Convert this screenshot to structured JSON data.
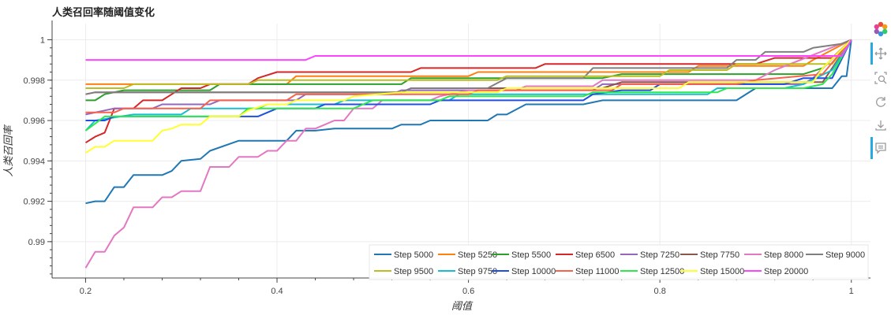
{
  "chart_data": {
    "type": "line",
    "title": "人类召回率随阈值变化",
    "xlabel": "阈值",
    "ylabel": "人类召回率",
    "xlim": [
      0.165,
      1.02
    ],
    "ylim": [
      0.9882,
      1.0008
    ],
    "xticks": [
      0.2,
      0.4,
      0.6,
      0.8,
      1
    ],
    "xtick_labels": [
      "0.2",
      "0.4",
      "0.6",
      "0.8",
      "1"
    ],
    "yticks": [
      0.99,
      0.992,
      0.994,
      0.996,
      0.998,
      1
    ],
    "ytick_labels": [
      "0.99",
      "0.992",
      "0.994",
      "0.996",
      "0.998",
      "1"
    ],
    "grid": true,
    "legend_position": "bottom-right",
    "series": [
      {
        "name": "Step 5000",
        "color": "#1f77b4",
        "points": [
          [
            0.2,
            0.9919
          ],
          [
            0.21,
            0.992
          ],
          [
            0.22,
            0.992
          ],
          [
            0.23,
            0.9927
          ],
          [
            0.24,
            0.9927
          ],
          [
            0.25,
            0.9933
          ],
          [
            0.28,
            0.9933
          ],
          [
            0.29,
            0.9935
          ],
          [
            0.3,
            0.994
          ],
          [
            0.32,
            0.9941
          ],
          [
            0.33,
            0.9945
          ],
          [
            0.36,
            0.995
          ],
          [
            0.41,
            0.995
          ],
          [
            0.42,
            0.9955
          ],
          [
            0.44,
            0.9955
          ],
          [
            0.46,
            0.9956
          ],
          [
            0.52,
            0.9956
          ],
          [
            0.53,
            0.9958
          ],
          [
            0.55,
            0.9958
          ],
          [
            0.56,
            0.996
          ],
          [
            0.62,
            0.996
          ],
          [
            0.63,
            0.9963
          ],
          [
            0.64,
            0.9963
          ],
          [
            0.66,
            0.9968
          ],
          [
            0.72,
            0.9968
          ],
          [
            0.74,
            0.997
          ],
          [
            0.88,
            0.997
          ],
          [
            0.9,
            0.9976
          ],
          [
            0.98,
            0.9976
          ],
          [
            0.99,
            0.9982
          ],
          [
            0.995,
            0.9982
          ],
          [
            1.0,
            1.0
          ]
        ]
      },
      {
        "name": "Step 5250",
        "color": "#ff7f0e",
        "points": [
          [
            0.2,
            0.9978
          ],
          [
            0.41,
            0.9978
          ],
          [
            0.42,
            0.9982
          ],
          [
            0.6,
            0.9982
          ],
          [
            0.61,
            0.9984
          ],
          [
            0.83,
            0.9984
          ],
          [
            0.84,
            0.9987
          ],
          [
            0.95,
            0.9987
          ],
          [
            0.96,
            0.999
          ],
          [
            1.0,
            1.0
          ]
        ]
      },
      {
        "name": "Step 5500",
        "color": "#2ca02c",
        "points": [
          [
            0.2,
            0.997
          ],
          [
            0.21,
            0.997
          ],
          [
            0.22,
            0.9973
          ],
          [
            0.24,
            0.9975
          ],
          [
            0.33,
            0.9975
          ],
          [
            0.34,
            0.9978
          ],
          [
            0.53,
            0.9978
          ],
          [
            0.54,
            0.9981
          ],
          [
            0.74,
            0.9981
          ],
          [
            0.76,
            0.9983
          ],
          [
            0.95,
            0.9983
          ],
          [
            0.97,
            0.9986
          ],
          [
            1.0,
            1.0
          ]
        ]
      },
      {
        "name": "Step 6500",
        "color": "#d62728",
        "points": [
          [
            0.2,
            0.9949
          ],
          [
            0.21,
            0.9952
          ],
          [
            0.22,
            0.9954
          ],
          [
            0.23,
            0.9966
          ],
          [
            0.25,
            0.9966
          ],
          [
            0.26,
            0.997
          ],
          [
            0.28,
            0.997
          ],
          [
            0.29,
            0.9973
          ],
          [
            0.3,
            0.9976
          ],
          [
            0.32,
            0.9976
          ],
          [
            0.33,
            0.9978
          ],
          [
            0.37,
            0.9978
          ],
          [
            0.38,
            0.9981
          ],
          [
            0.4,
            0.9984
          ],
          [
            0.54,
            0.9984
          ],
          [
            0.55,
            0.9986
          ],
          [
            0.67,
            0.9986
          ],
          [
            0.68,
            0.9988
          ],
          [
            0.9,
            0.9988
          ],
          [
            0.92,
            0.9991
          ],
          [
            0.98,
            0.9991
          ],
          [
            1.0,
            1.0
          ]
        ]
      },
      {
        "name": "Step 7250",
        "color": "#9467bd",
        "points": [
          [
            0.2,
            0.9963
          ],
          [
            0.23,
            0.9966
          ],
          [
            0.27,
            0.9966
          ],
          [
            0.28,
            0.9968
          ],
          [
            0.33,
            0.9968
          ],
          [
            0.34,
            0.997
          ],
          [
            0.42,
            0.997
          ],
          [
            0.43,
            0.9973
          ],
          [
            0.52,
            0.9973
          ],
          [
            0.53,
            0.9975
          ],
          [
            0.73,
            0.9975
          ],
          [
            0.74,
            0.9978
          ],
          [
            0.95,
            0.9978
          ],
          [
            0.96,
            0.9981
          ],
          [
            1.0,
            1.0
          ]
        ]
      },
      {
        "name": "Step 7750",
        "color": "#8c564b",
        "points": [
          [
            0.2,
            0.9973
          ],
          [
            0.21,
            0.9974
          ],
          [
            0.53,
            0.9974
          ],
          [
            0.54,
            0.9976
          ],
          [
            0.74,
            0.9976
          ],
          [
            0.76,
            0.9979
          ],
          [
            0.97,
            0.9979
          ],
          [
            1.0,
            1.0
          ]
        ]
      },
      {
        "name": "Step 8000",
        "color": "#e377c2",
        "points": [
          [
            0.2,
            0.9887
          ],
          [
            0.21,
            0.9895
          ],
          [
            0.22,
            0.9895
          ],
          [
            0.23,
            0.9903
          ],
          [
            0.24,
            0.9907
          ],
          [
            0.25,
            0.9917
          ],
          [
            0.27,
            0.9917
          ],
          [
            0.28,
            0.9922
          ],
          [
            0.29,
            0.9922
          ],
          [
            0.3,
            0.9925
          ],
          [
            0.32,
            0.9925
          ],
          [
            0.33,
            0.9937
          ],
          [
            0.35,
            0.9937
          ],
          [
            0.36,
            0.9942
          ],
          [
            0.38,
            0.9942
          ],
          [
            0.39,
            0.9945
          ],
          [
            0.4,
            0.9945
          ],
          [
            0.41,
            0.995
          ],
          [
            0.42,
            0.995
          ],
          [
            0.43,
            0.9956
          ],
          [
            0.44,
            0.9956
          ],
          [
            0.45,
            0.9958
          ],
          [
            0.46,
            0.996
          ],
          [
            0.47,
            0.996
          ],
          [
            0.48,
            0.9966
          ],
          [
            0.5,
            0.9966
          ],
          [
            0.51,
            0.997
          ],
          [
            0.56,
            0.997
          ],
          [
            0.57,
            0.9972
          ],
          [
            0.6,
            0.9975
          ],
          [
            0.65,
            0.9975
          ],
          [
            0.66,
            0.9977
          ],
          [
            0.73,
            0.9977
          ],
          [
            0.74,
            0.998
          ],
          [
            0.9,
            0.998
          ],
          [
            0.92,
            0.9985
          ],
          [
            1.0,
            1.0
          ]
        ]
      },
      {
        "name": "Step 9000",
        "color": "#7f7f7f",
        "points": [
          [
            0.2,
            0.9973
          ],
          [
            0.21,
            0.9974
          ],
          [
            0.53,
            0.9974
          ],
          [
            0.54,
            0.9976
          ],
          [
            0.62,
            0.9976
          ],
          [
            0.64,
            0.9981
          ],
          [
            0.72,
            0.9981
          ],
          [
            0.73,
            0.9986
          ],
          [
            0.87,
            0.9986
          ],
          [
            0.88,
            0.999
          ],
          [
            0.9,
            0.999
          ],
          [
            0.91,
            0.9994
          ],
          [
            0.95,
            0.9994
          ],
          [
            0.96,
            0.9996
          ],
          [
            0.99,
            0.9998
          ],
          [
            1.0,
            1.0
          ]
        ]
      },
      {
        "name": "Step 9500",
        "color": "#bcbd22",
        "points": [
          [
            0.2,
            0.9976
          ],
          [
            0.24,
            0.9976
          ],
          [
            0.25,
            0.9978
          ],
          [
            0.37,
            0.9978
          ],
          [
            0.38,
            0.998
          ],
          [
            0.63,
            0.998
          ],
          [
            0.64,
            0.9982
          ],
          [
            0.8,
            0.9982
          ],
          [
            0.81,
            0.9985
          ],
          [
            0.87,
            0.9985
          ],
          [
            0.88,
            0.9988
          ],
          [
            0.98,
            0.9988
          ],
          [
            1.0,
            1.0
          ]
        ]
      },
      {
        "name": "Step 9750",
        "color": "#17becf",
        "points": [
          [
            0.2,
            0.9955
          ],
          [
            0.21,
            0.996
          ],
          [
            0.25,
            0.9963
          ],
          [
            0.3,
            0.9963
          ],
          [
            0.31,
            0.9966
          ],
          [
            0.38,
            0.9966
          ],
          [
            0.39,
            0.9968
          ],
          [
            0.46,
            0.9968
          ],
          [
            0.47,
            0.997
          ],
          [
            0.58,
            0.997
          ],
          [
            0.59,
            0.9973
          ],
          [
            0.85,
            0.9973
          ],
          [
            0.86,
            0.9976
          ],
          [
            0.93,
            0.9976
          ],
          [
            0.95,
            0.9978
          ],
          [
            0.98,
            0.9985
          ],
          [
            1.0,
            1.0
          ]
        ]
      },
      {
        "name": "Step 10000",
        "color": "#1f4fe0",
        "points": [
          [
            0.2,
            0.996
          ],
          [
            0.22,
            0.996
          ],
          [
            0.23,
            0.9962
          ],
          [
            0.38,
            0.9962
          ],
          [
            0.4,
            0.9966
          ],
          [
            0.44,
            0.9966
          ],
          [
            0.45,
            0.9968
          ],
          [
            0.56,
            0.9968
          ],
          [
            0.57,
            0.997
          ],
          [
            0.72,
            0.997
          ],
          [
            0.73,
            0.9973
          ],
          [
            0.76,
            0.9975
          ],
          [
            0.79,
            0.9975
          ],
          [
            0.8,
            0.9978
          ],
          [
            0.93,
            0.9978
          ],
          [
            0.95,
            0.9981
          ],
          [
            0.98,
            0.9981
          ],
          [
            1.0,
            1.0
          ]
        ]
      },
      {
        "name": "Step 11000",
        "color": "#f8624d",
        "points": [
          [
            0.2,
            0.9964
          ],
          [
            0.23,
            0.9964
          ],
          [
            0.24,
            0.9966
          ],
          [
            0.32,
            0.9966
          ],
          [
            0.33,
            0.997
          ],
          [
            0.41,
            0.997
          ],
          [
            0.42,
            0.9973
          ],
          [
            0.6,
            0.9973
          ],
          [
            0.61,
            0.9975
          ],
          [
            0.75,
            0.9975
          ],
          [
            0.76,
            0.9978
          ],
          [
            0.88,
            0.9978
          ],
          [
            0.9,
            0.998
          ],
          [
            0.97,
            0.9983
          ],
          [
            1.0,
            1.0
          ]
        ]
      },
      {
        "name": "Step 12500",
        "color": "#2ee84e",
        "points": [
          [
            0.2,
            0.9955
          ],
          [
            0.22,
            0.9962
          ],
          [
            0.36,
            0.9962
          ],
          [
            0.37,
            0.9966
          ],
          [
            0.48,
            0.9966
          ],
          [
            0.49,
            0.9968
          ],
          [
            0.5,
            0.997
          ],
          [
            0.57,
            0.997
          ],
          [
            0.58,
            0.9972
          ],
          [
            0.72,
            0.9972
          ],
          [
            0.73,
            0.9974
          ],
          [
            0.86,
            0.9974
          ],
          [
            0.87,
            0.9976
          ],
          [
            0.95,
            0.9976
          ],
          [
            0.97,
            0.9978
          ],
          [
            0.98,
            0.9983
          ],
          [
            1.0,
            1.0
          ]
        ]
      },
      {
        "name": "Step 15000",
        "color": "#ffff30",
        "points": [
          [
            0.2,
            0.9944
          ],
          [
            0.21,
            0.9947
          ],
          [
            0.22,
            0.9947
          ],
          [
            0.23,
            0.995
          ],
          [
            0.27,
            0.995
          ],
          [
            0.28,
            0.9955
          ],
          [
            0.29,
            0.9956
          ],
          [
            0.3,
            0.9958
          ],
          [
            0.32,
            0.9958
          ],
          [
            0.33,
            0.9962
          ],
          [
            0.36,
            0.9962
          ],
          [
            0.37,
            0.9965
          ],
          [
            0.39,
            0.9968
          ],
          [
            0.41,
            0.9968
          ],
          [
            0.42,
            0.997
          ],
          [
            0.47,
            0.997
          ],
          [
            0.48,
            0.9972
          ],
          [
            0.53,
            0.9974
          ],
          [
            0.63,
            0.9974
          ],
          [
            0.64,
            0.9976
          ],
          [
            0.82,
            0.9976
          ],
          [
            0.83,
            0.9979
          ],
          [
            0.96,
            0.9979
          ],
          [
            0.97,
            0.9986
          ],
          [
            1.0,
            1.0
          ]
        ]
      },
      {
        "name": "Step 20000",
        "color": "#ff44ff",
        "points": [
          [
            0.2,
            0.999
          ],
          [
            0.43,
            0.999
          ],
          [
            0.44,
            0.9992
          ],
          [
            0.99,
            0.9992
          ],
          [
            1.0,
            1.0
          ]
        ]
      }
    ]
  },
  "toolbar": {
    "tools": [
      {
        "name": "bokeh-logo-icon"
      },
      {
        "name": "pan-tool-icon"
      },
      {
        "name": "box-zoom-tool-icon"
      },
      {
        "name": "reset-tool-icon"
      },
      {
        "name": "save-tool-icon"
      },
      {
        "name": "hover-tool-icon"
      }
    ],
    "active_color": "#26aae1"
  }
}
